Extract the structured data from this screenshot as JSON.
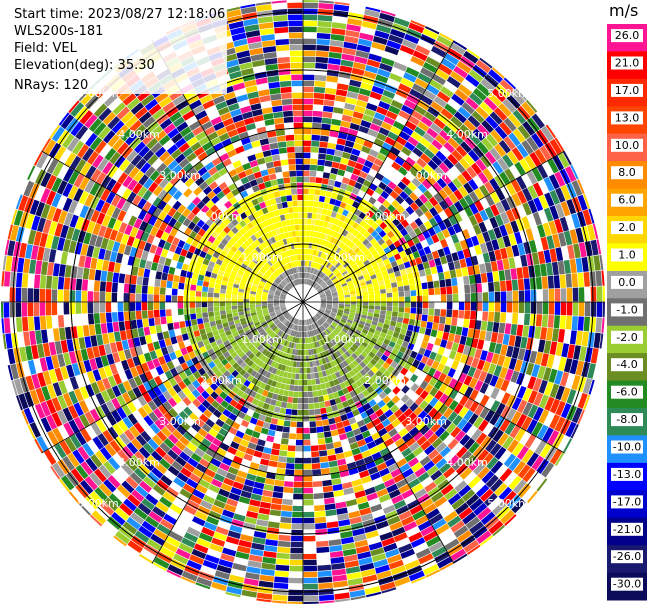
{
  "info": {
    "start_time": "Start time: 2023/08/27 12:18:06",
    "site": "WLS200s-181",
    "field": "Field: VEL",
    "elevation": "Elevation(deg): 35.30",
    "nrays": "NRays: 120"
  },
  "range_labels": [
    "1.00km",
    "2.00km",
    "3.00km",
    "4.00km",
    "5.00km"
  ],
  "colorbar": {
    "unit": "m/s",
    "ticks": [
      "26.0",
      "21.0",
      "17.0",
      "13.0",
      "10.0",
      "8.0",
      "6.0",
      "2.0",
      "1.0",
      "0.0",
      "-1.0",
      "-2.0",
      "-4.0",
      "-6.0",
      "-8.0",
      "-10.0",
      "-13.0",
      "-17.0",
      "-21.0",
      "-26.0",
      "-30.0"
    ],
    "colors": [
      "#ff1493",
      "#ff0000",
      "#ff2a00",
      "#ff4500",
      "#ff6347",
      "#ff8c00",
      "#ffa500",
      "#ffd700",
      "#ffff00",
      "#a0a0a0",
      "#707070",
      "#9acd32",
      "#6b8e23",
      "#228b22",
      "#2e8b57",
      "#1e90ff",
      "#0000ff",
      "#0000cd",
      "#00008b",
      "#191970",
      "#0b0b5a"
    ]
  },
  "colors": {
    "pink": "#ff1493",
    "red": "#ff0000",
    "orange": "#ffa500",
    "yellow": "#ffff00",
    "gray": "#808080",
    "olive": "#9acd32",
    "green": "#228b22",
    "blue": "#0000ff",
    "navy": "#00008b"
  }
}
